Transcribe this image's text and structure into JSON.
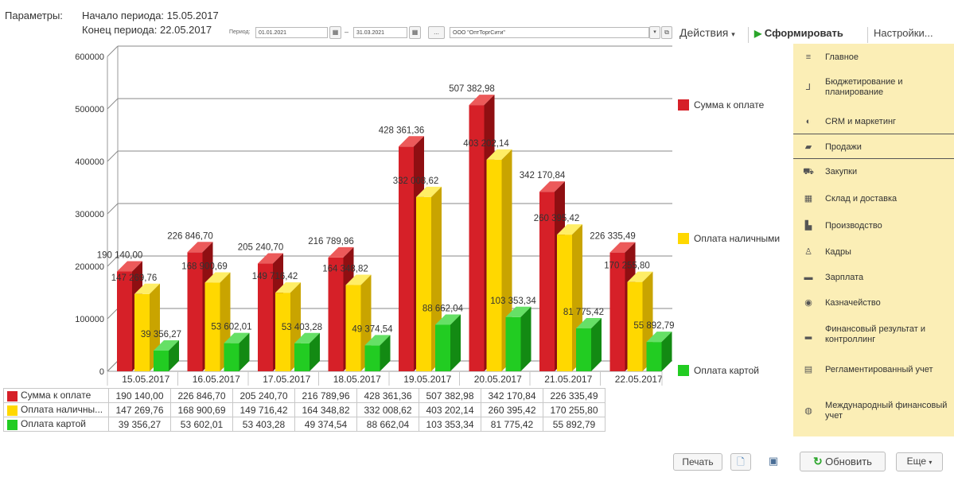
{
  "params": {
    "label": "Параметры:",
    "period_start": "Начало периода: 15.05.2017",
    "period_end": "Конец периода: 22.05.2017"
  },
  "toolbar": {
    "period_label": "Период:",
    "date_from": "01.01.2021",
    "dash": "–",
    "date_to": "31.03.2021",
    "dots": "...",
    "org": "ООО \"ОптТоргСити\"",
    "actions": "Действия",
    "generate": "Сформировать",
    "settings": "Настройки..."
  },
  "colors": {
    "sum": "#d62028",
    "cash": "#ffd800",
    "card": "#22cc22",
    "panel": "#fbeeb6"
  },
  "nav": {
    "items": [
      {
        "label": "Главное",
        "icon": "menu-icon"
      },
      {
        "label": "Бюджетирование и планирование",
        "icon": "budget-icon"
      },
      {
        "label": "CRM и маркетинг",
        "icon": "crm-icon"
      },
      {
        "label": "Продажи",
        "icon": "sales-icon"
      },
      {
        "label": "Закупки",
        "icon": "cart-icon"
      },
      {
        "label": "Склад и доставка",
        "icon": "warehouse-icon"
      },
      {
        "label": "Производство",
        "icon": "factory-icon"
      },
      {
        "label": "Кадры",
        "icon": "person-icon"
      },
      {
        "label": "Зарплата",
        "icon": "salary-icon"
      },
      {
        "label": "Казначейство",
        "icon": "treasury-icon"
      },
      {
        "label": "Финансовый результат и контроллинг",
        "icon": "bar-chart-icon"
      },
      {
        "label": "Регламентированный учет",
        "icon": "calculator-icon"
      },
      {
        "label": "Международный финансовый учет",
        "icon": "globe-icon"
      }
    ]
  },
  "chart_data": {
    "type": "bar",
    "categories": [
      "15.05.2017",
      "16.05.2017",
      "17.05.2017",
      "18.05.2017",
      "19.05.2017",
      "20.05.2017",
      "21.05.2017",
      "22.05.2017"
    ],
    "series": [
      {
        "name": "Сумма к оплате",
        "values": [
          190140.0,
          226846.7,
          205240.7,
          216789.96,
          428361.36,
          507382.98,
          342170.84,
          226335.49
        ],
        "labels": [
          "190 140,00",
          "226 846,70",
          "205 240,70",
          "216 789,96",
          "428 361,36",
          "507 382,98",
          "342 170,84",
          "226 335,49"
        ]
      },
      {
        "name": "Оплата наличными",
        "values": [
          147269.76,
          168900.69,
          149716.42,
          164348.82,
          332008.62,
          403202.14,
          260395.42,
          170255.8
        ],
        "labels": [
          "147 269,76",
          "168 900,69",
          "149 716,42",
          "164 348,82",
          "332 008,62",
          "403 202,14",
          "260 395,42",
          "170 255,80"
        ]
      },
      {
        "name": "Оплата картой",
        "values": [
          39356.27,
          53602.01,
          53403.28,
          49374.54,
          88662.04,
          103353.34,
          81775.42,
          55892.79
        ],
        "labels": [
          "39 356,27",
          "53 602,01",
          "53 403,28",
          "49 374,54",
          "88 662,04",
          "103 353,34",
          "81 775,42",
          "55 892,79"
        ]
      }
    ],
    "yticks": [
      "600000",
      "500000",
      "400000",
      "300000",
      "200000",
      "100000",
      "0"
    ],
    "ylim": [
      0,
      600000
    ],
    "grid": true,
    "legend": "right"
  },
  "table": {
    "series_labels": [
      "Сумма к оплате",
      "Оплата наличны...",
      "Оплата картой"
    ]
  },
  "bottom": {
    "print": "Печать",
    "refresh": "Обновить",
    "more": "Еще"
  }
}
